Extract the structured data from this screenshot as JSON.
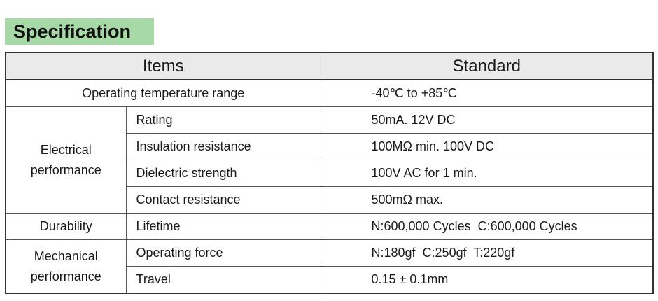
{
  "heading": "Specification",
  "table": {
    "headers": {
      "items": "Items",
      "standard": "Standard"
    },
    "rows": {
      "operating_temperature": {
        "item": "Operating temperature range",
        "standard": "-40℃ to +85℃"
      },
      "electrical": {
        "group_line1": "Electrical",
        "group_line2": "performance",
        "rating": {
          "item": "Rating",
          "standard": "50mA. 12V DC"
        },
        "insulation": {
          "item": "Insulation resistance",
          "standard": "100MΩ min. 100V DC"
        },
        "dielectric": {
          "item": "Dielectric strength",
          "standard": "100V AC for 1 min."
        },
        "contact": {
          "item": "Contact resistance",
          "standard": "500mΩ max."
        }
      },
      "durability": {
        "group": "Durability",
        "lifetime": {
          "item": "Lifetime",
          "standard": "N:600,000 Cycles  C:600,000 Cycles"
        }
      },
      "mechanical": {
        "group_line1": "Mechanical",
        "group_line2": "performance",
        "force": {
          "item": "Operating force",
          "standard": "N:180gf  C:250gf  T:220gf"
        },
        "travel": {
          "item": "Travel",
          "standard": "0.15 ± 0.1mm"
        }
      }
    }
  }
}
